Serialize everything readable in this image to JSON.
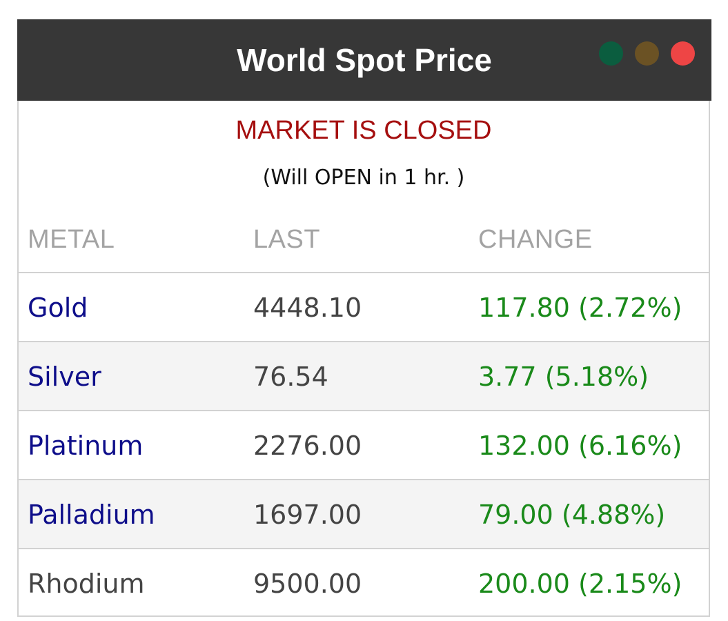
{
  "widget": {
    "title": "World Spot Price",
    "window_controls": [
      {
        "name": "green-dot-icon",
        "color": "#0b5d3f"
      },
      {
        "name": "olive-dot-icon",
        "color": "#6b5224"
      },
      {
        "name": "red-dot-icon",
        "color": "#ee4545"
      }
    ],
    "status": "MARKET IS CLOSED",
    "substatus": "(Will OPEN in 1 hr. )"
  },
  "table": {
    "headers": {
      "metal": "METAL",
      "last": "LAST",
      "change": "CHANGE"
    },
    "rows": [
      {
        "metal": "Gold",
        "last": "4448.10",
        "change": "117.80 (2.72%)",
        "linked": true
      },
      {
        "metal": "Silver",
        "last": "76.54",
        "change": "3.77 (5.18%)",
        "linked": true
      },
      {
        "metal": "Platinum",
        "last": "2276.00",
        "change": "132.00 (6.16%)",
        "linked": true
      },
      {
        "metal": "Palladium",
        "last": "1697.00",
        "change": "79.00 (4.88%)",
        "linked": true
      },
      {
        "metal": "Rhodium",
        "last": "9500.00",
        "change": "200.00 (2.15%)",
        "linked": false
      }
    ]
  },
  "colors": {
    "titlebar": "#373737",
    "status": "#a50f0f",
    "link": "#0e0e8a",
    "positive": "#1a8a1a",
    "header_text": "#a3a3a3"
  }
}
